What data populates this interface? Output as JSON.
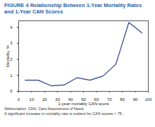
{
  "chart_data": {
    "type": "line",
    "title": "FIGURE 4 Relationship Between 1-Year Mortality Rates and 1-Year CAN Scores",
    "x_label": "1-year mortality CAN score",
    "y_label": "Mortality, %",
    "x": [
      5,
      15,
      25,
      35,
      45,
      55,
      65,
      75,
      85,
      95
    ],
    "values": [
      0.7,
      0.7,
      0.35,
      0.4,
      0.85,
      0.7,
      0.95,
      1.7,
      4.3,
      3.65
    ],
    "color": "#2b3f8a",
    "xlim": [
      0,
      100
    ],
    "xticks": [
      0,
      10,
      20,
      30,
      40,
      50,
      60,
      70,
      80,
      90,
      100
    ],
    "ylim": [
      0,
      4.4
    ],
    "yticks": [
      0,
      1,
      2,
      3,
      4
    ],
    "grid": false,
    "annotations": [
      "Abbreviation: CAN, Care Assessment of Need.",
      "A significant increase in mortality rate is evident for CAN scores > 75."
    ]
  }
}
